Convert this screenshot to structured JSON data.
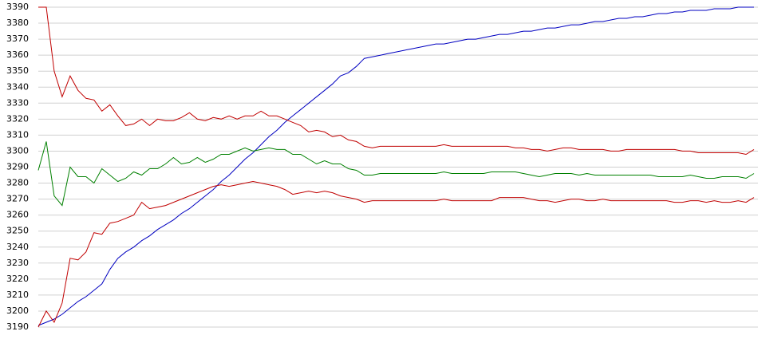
{
  "chart_data": {
    "type": "line",
    "ylim": [
      3190,
      3390
    ],
    "yticks": [
      3190,
      3200,
      3210,
      3220,
      3230,
      3240,
      3250,
      3260,
      3270,
      3280,
      3290,
      3300,
      3310,
      3320,
      3330,
      3340,
      3350,
      3360,
      3370,
      3380,
      3390
    ],
    "grid": true,
    "series": [
      {
        "color": "#0000c0",
        "values": [
          3191,
          3193,
          3195,
          3198,
          3202,
          3206,
          3209,
          3213,
          3217,
          3226,
          3233,
          3237,
          3240,
          3244,
          3247,
          3251,
          3254,
          3257,
          3261,
          3264,
          3268,
          3272,
          3276,
          3281,
          3285,
          3290,
          3295,
          3299,
          3304,
          3309,
          3313,
          3318,
          3322,
          3326,
          3330,
          3334,
          3338,
          3342,
          3347,
          3349,
          3353,
          3358,
          3359,
          3360,
          3361,
          3362,
          3363,
          3364,
          3365,
          3366,
          3367,
          3367,
          3368,
          3369,
          3370,
          3370,
          3371,
          3372,
          3373,
          3373,
          3374,
          3375,
          3375,
          3376,
          3377,
          3377,
          3378,
          3379,
          3379,
          3380,
          3381,
          3381,
          3382,
          3383,
          3383,
          3384,
          3384,
          3385,
          3386,
          3386,
          3387,
          3387,
          3388,
          3388,
          3388,
          3389,
          3389,
          3389,
          3390,
          3390,
          3390
        ]
      },
      {
        "color": "#c00000",
        "values": [
          3390,
          3390,
          3350,
          3334,
          3347,
          3338,
          3333,
          3332,
          3325,
          3329,
          3322,
          3316,
          3317,
          3320,
          3316,
          3320,
          3319,
          3319,
          3321,
          3324,
          3320,
          3319,
          3321,
          3320,
          3322,
          3320,
          3322,
          3322,
          3325,
          3322,
          3322,
          3320,
          3318,
          3316,
          3312,
          3313,
          3312,
          3309,
          3310,
          3307,
          3306,
          3303,
          3302,
          3303,
          3303,
          3303,
          3303,
          3303,
          3303,
          3303,
          3303,
          3304,
          3303,
          3303,
          3303,
          3303,
          3303,
          3303,
          3303,
          3303,
          3302,
          3302,
          3301,
          3301,
          3300,
          3301,
          3302,
          3302,
          3301,
          3301,
          3301,
          3301,
          3300,
          3300,
          3301,
          3301,
          3301,
          3301,
          3301,
          3301,
          3301,
          3300,
          3300,
          3299,
          3299,
          3299,
          3299,
          3299,
          3299,
          3298,
          3301
        ]
      },
      {
        "color": "#008000",
        "values": [
          3288,
          3306,
          3272,
          3266,
          3290,
          3284,
          3284,
          3280,
          3289,
          3285,
          3281,
          3283,
          3287,
          3285,
          3289,
          3289,
          3292,
          3296,
          3292,
          3293,
          3296,
          3293,
          3295,
          3298,
          3298,
          3300,
          3302,
          3300,
          3301,
          3302,
          3301,
          3301,
          3298,
          3298,
          3295,
          3292,
          3294,
          3292,
          3292,
          3289,
          3288,
          3285,
          3285,
          3286,
          3286,
          3286,
          3286,
          3286,
          3286,
          3286,
          3286,
          3287,
          3286,
          3286,
          3286,
          3286,
          3286,
          3287,
          3287,
          3287,
          3287,
          3286,
          3285,
          3284,
          3285,
          3286,
          3286,
          3286,
          3285,
          3286,
          3285,
          3285,
          3285,
          3285,
          3285,
          3285,
          3285,
          3285,
          3284,
          3284,
          3284,
          3284,
          3285,
          3284,
          3283,
          3283,
          3284,
          3284,
          3284,
          3283,
          3286
        ]
      },
      {
        "color": "#c00000",
        "values": [
          3190,
          3200,
          3193,
          3205,
          3233,
          3232,
          3237,
          3249,
          3248,
          3255,
          3256,
          3258,
          3260,
          3268,
          3264,
          3265,
          3266,
          3268,
          3270,
          3272,
          3274,
          3276,
          3278,
          3279,
          3278,
          3279,
          3280,
          3281,
          3280,
          3279,
          3278,
          3276,
          3273,
          3274,
          3275,
          3274,
          3275,
          3274,
          3272,
          3271,
          3270,
          3268,
          3269,
          3269,
          3269,
          3269,
          3269,
          3269,
          3269,
          3269,
          3269,
          3270,
          3269,
          3269,
          3269,
          3269,
          3269,
          3269,
          3271,
          3271,
          3271,
          3271,
          3270,
          3269,
          3269,
          3268,
          3269,
          3270,
          3270,
          3269,
          3269,
          3270,
          3269,
          3269,
          3269,
          3269,
          3269,
          3269,
          3269,
          3269,
          3268,
          3268,
          3269,
          3269,
          3268,
          3269,
          3268,
          3268,
          3269,
          3268,
          3271
        ]
      }
    ]
  }
}
